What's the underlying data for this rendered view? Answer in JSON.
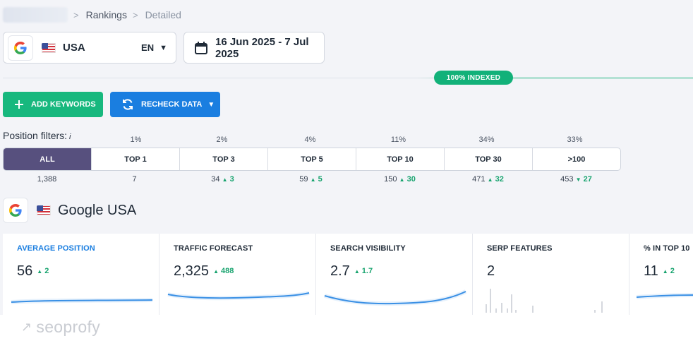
{
  "breadcrumb": {
    "items": [
      "Rankings",
      "Detailed"
    ]
  },
  "location": {
    "name": "USA",
    "language": "EN"
  },
  "date_range": "16 Jun 2025 - 7 Jul 2025",
  "indexed_badge": "100% INDEXED",
  "buttons": {
    "add_keywords": "ADD KEYWORDS",
    "recheck_data": "RECHECK DATA"
  },
  "position_filters": {
    "label": "Position filters:",
    "info": "i",
    "tabs": [
      {
        "label": "ALL",
        "pct": "",
        "count": "1,388",
        "delta": ""
      },
      {
        "label": "TOP 1",
        "pct": "1%",
        "count": "7",
        "delta": ""
      },
      {
        "label": "TOP 3",
        "pct": "2%",
        "count": "34",
        "delta": "3"
      },
      {
        "label": "TOP 5",
        "pct": "4%",
        "count": "59",
        "delta": "5"
      },
      {
        "label": "TOP 10",
        "pct": "11%",
        "count": "150",
        "delta": "30"
      },
      {
        "label": "TOP 30",
        "pct": "34%",
        "count": "471",
        "delta": "32"
      },
      {
        "label": ">100",
        "pct": "33%",
        "count": "453",
        "delta": "27"
      }
    ]
  },
  "search_engine": {
    "title": "Google USA"
  },
  "metrics": [
    {
      "title": "AVERAGE POSITION",
      "value": "56",
      "delta": "2"
    },
    {
      "title": "TRAFFIC FORECAST",
      "value": "2,325",
      "delta": "488"
    },
    {
      "title": "SEARCH VISIBILITY",
      "value": "2.7",
      "delta": "1.7"
    },
    {
      "title": "SERP FEATURES",
      "value": "2",
      "delta": ""
    },
    {
      "title": "% IN TOP 10",
      "value": "11",
      "delta": "2"
    }
  ],
  "watermark": "seoprofy",
  "colors": {
    "accent_green": "#17b87e",
    "accent_blue": "#1a7ee0",
    "active_tab": "#57507e"
  }
}
